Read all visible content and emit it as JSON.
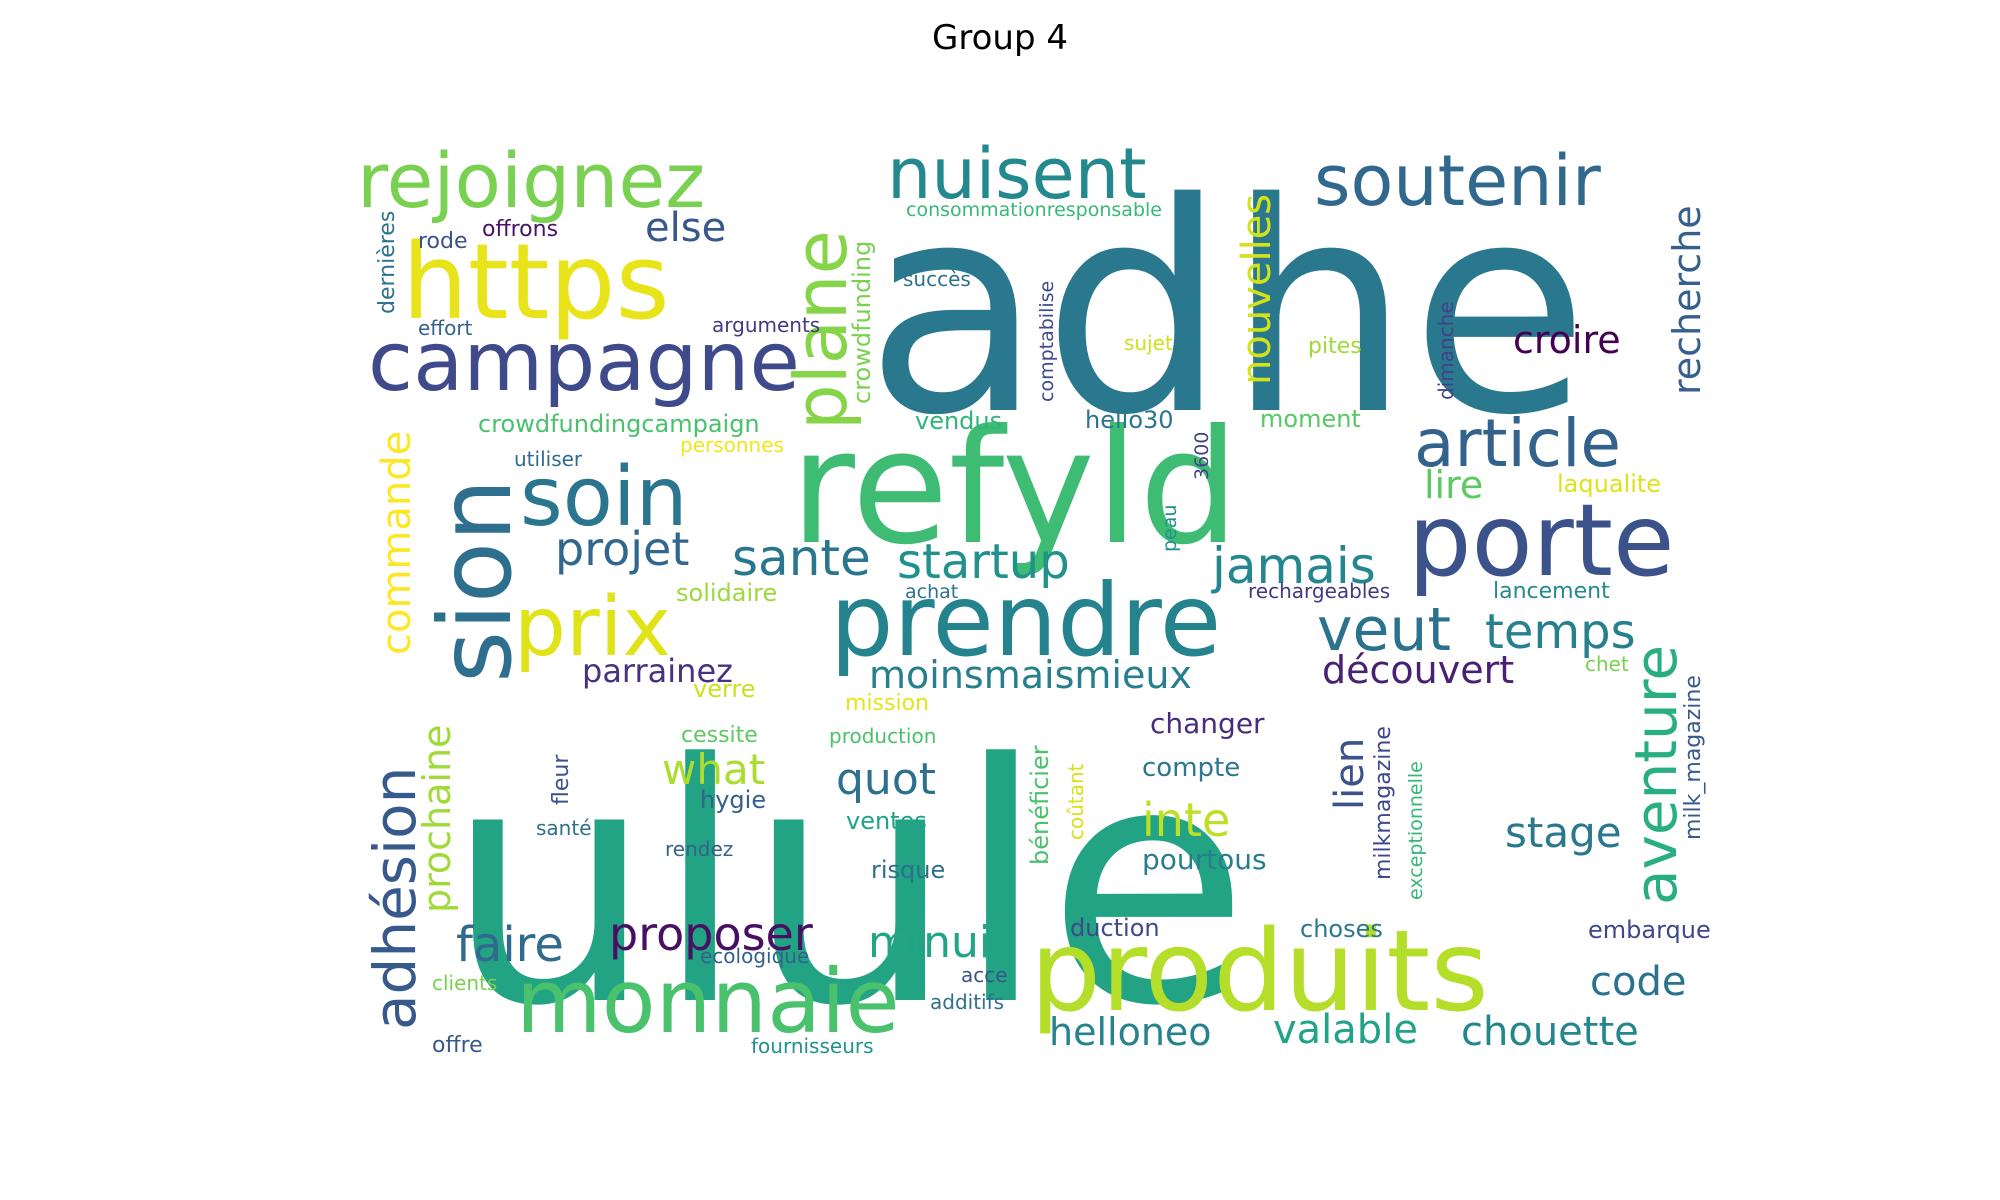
{
  "title": "Group 4",
  "palette": "viridis",
  "words": [
    {
      "text": "ulule",
      "color": "#22a384"
    },
    {
      "text": "adhe",
      "color": "#2a788e"
    },
    {
      "text": "refyld",
      "color": "#3fbc73"
    },
    {
      "text": "produits",
      "color": "#b5de2b"
    },
    {
      "text": "prendre",
      "color": "#25838e"
    },
    {
      "text": "porte",
      "color": "#3b528b"
    },
    {
      "text": "monnaie",
      "color": "#4ac16d"
    },
    {
      "text": "https",
      "color": "#e8e419"
    },
    {
      "text": "campagne",
      "color": "#3e4a89"
    },
    {
      "text": "sion",
      "color": "#2e6f8e"
    },
    {
      "text": "soin",
      "color": "#2b758e"
    },
    {
      "text": "prix",
      "color": "#dfe318"
    },
    {
      "text": "rejoignez",
      "color": "#7ad151"
    },
    {
      "text": "nuisent",
      "color": "#23898e"
    },
    {
      "text": "soutenir",
      "color": "#31688e"
    },
    {
      "text": "plane",
      "color": "#86d549"
    },
    {
      "text": "article",
      "color": "#33638d"
    },
    {
      "text": "aventure",
      "color": "#29af7f"
    },
    {
      "text": "adhésion",
      "color": "#38598c"
    },
    {
      "text": "veut",
      "color": "#2c728e"
    },
    {
      "text": "temps",
      "color": "#27808e"
    },
    {
      "text": "jamais",
      "color": "#24868e"
    },
    {
      "text": "sante",
      "color": "#2a768e"
    },
    {
      "text": "startup",
      "color": "#21918c"
    },
    {
      "text": "projet",
      "color": "#31678e"
    },
    {
      "text": "nouvelles",
      "color": "#d2e21b"
    },
    {
      "text": "commande",
      "color": "#fde725"
    },
    {
      "text": "prochaine",
      "color": "#a0da39"
    },
    {
      "text": "découvert",
      "color": "#482173"
    },
    {
      "text": "moinsmaismieux",
      "color": "#277f8e"
    },
    {
      "text": "croire",
      "color": "#440154"
    },
    {
      "text": "recherche",
      "color": "#355f8d"
    },
    {
      "text": "lire",
      "color": "#5ec962"
    },
    {
      "text": "faire",
      "color": "#306a8e"
    },
    {
      "text": "proposer",
      "color": "#471063"
    },
    {
      "text": "minuit",
      "color": "#21a685"
    },
    {
      "text": "quot",
      "color": "#2d708e"
    },
    {
      "text": "what",
      "color": "#addc30"
    },
    {
      "text": "inte",
      "color": "#bddf26"
    },
    {
      "text": "lien",
      "color": "#3b528b"
    },
    {
      "text": "stage",
      "color": "#2a788e"
    },
    {
      "text": "code",
      "color": "#2c728e"
    },
    {
      "text": "valable",
      "color": "#20a386"
    },
    {
      "text": "chouette",
      "color": "#23888e"
    },
    {
      "text": "helloneo",
      "color": "#26828e"
    },
    {
      "text": "else",
      "color": "#38588c"
    },
    {
      "text": "parrainez",
      "color": "#46327e"
    },
    {
      "text": "changer",
      "color": "#472d7b"
    },
    {
      "text": "compte",
      "color": "#2a778e"
    },
    {
      "text": "pourtous",
      "color": "#287d8e"
    },
    {
      "text": "milkmagazine",
      "color": "#3e4989"
    },
    {
      "text": "milk_magazine",
      "color": "#375a8c"
    },
    {
      "text": "exceptionnelle",
      "color": "#35b779"
    },
    {
      "text": "bénéficier",
      "color": "#4ac16d"
    },
    {
      "text": "coûtant",
      "color": "#d8e219"
    },
    {
      "text": "crowdfunding",
      "color": "#7ad151"
    },
    {
      "text": "crowdfundingcampaign",
      "color": "#4ac16d"
    },
    {
      "text": "consommationresponsable",
      "color": "#37b878"
    },
    {
      "text": "comptabilise",
      "color": "#3e4a89"
    },
    {
      "text": "dimanche",
      "color": "#424186"
    },
    {
      "text": "dernières",
      "color": "#2c718e"
    },
    {
      "text": "offrons",
      "color": "#471365"
    },
    {
      "text": "rode",
      "color": "#3b528b"
    },
    {
      "text": "effort",
      "color": "#33638d"
    },
    {
      "text": "arguments",
      "color": "#443a83"
    },
    {
      "text": "succès",
      "color": "#2d708e"
    },
    {
      "text": "sujet",
      "color": "#d0e11c"
    },
    {
      "text": "pites",
      "color": "#a0da39"
    },
    {
      "text": "vendus",
      "color": "#2fb47c"
    },
    {
      "text": "hello30",
      "color": "#2b758e"
    },
    {
      "text": "moment",
      "color": "#58c765"
    },
    {
      "text": "3600",
      "color": "#414487"
    },
    {
      "text": "peau",
      "color": "#21918c"
    },
    {
      "text": "utiliser",
      "color": "#2f6b8e"
    },
    {
      "text": "personnes",
      "color": "#f1e51d"
    },
    {
      "text": "laqualite",
      "color": "#dde318"
    },
    {
      "text": "solidaire",
      "color": "#9dd93b"
    },
    {
      "text": "achat",
      "color": "#2c728e"
    },
    {
      "text": "rechargeables",
      "color": "#453781"
    },
    {
      "text": "lancement",
      "color": "#23898e"
    },
    {
      "text": "chet",
      "color": "#7ad151"
    },
    {
      "text": "verre",
      "color": "#cae11f"
    },
    {
      "text": "mission",
      "color": "#e5e419"
    },
    {
      "text": "cessite",
      "color": "#5ec962"
    },
    {
      "text": "production",
      "color": "#4ac16d"
    },
    {
      "text": "hygie",
      "color": "#355f8d"
    },
    {
      "text": "ventes",
      "color": "#20a486"
    },
    {
      "text": "fleur",
      "color": "#3b528b"
    },
    {
      "text": "santé",
      "color": "#2d708e"
    },
    {
      "text": "rendez",
      "color": "#33638d"
    },
    {
      "text": "risque",
      "color": "#2e6e8e"
    },
    {
      "text": "duction",
      "color": "#3e4989"
    },
    {
      "text": "choses",
      "color": "#2a788e"
    },
    {
      "text": "embarque",
      "color": "#3f4889"
    },
    {
      "text": "ecologique",
      "color": "#355f8d"
    },
    {
      "text": "acce",
      "color": "#3b528b"
    },
    {
      "text": "additifs",
      "color": "#2c718e"
    },
    {
      "text": "clients",
      "color": "#7ad151"
    },
    {
      "text": "offre",
      "color": "#38588c"
    },
    {
      "text": "fournisseurs",
      "color": "#21918c"
    }
  ]
}
